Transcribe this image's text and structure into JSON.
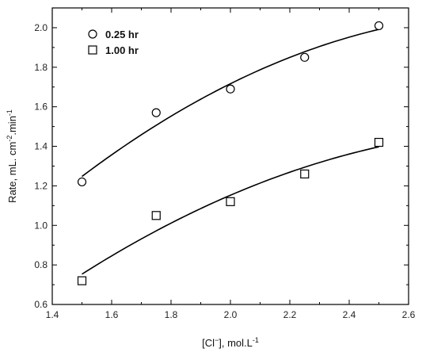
{
  "chart_data": {
    "type": "scatter",
    "title": "",
    "xlabel_parts": [
      "[Cl",
      "−",
      "], mol.L",
      "-1"
    ],
    "ylabel_parts": [
      "Rate, mL. cm",
      "-2",
      ".min",
      "-1"
    ],
    "xlim": [
      1.4,
      2.6
    ],
    "ylim": [
      0.6,
      2.1
    ],
    "xticks": [
      1.4,
      1.6,
      1.8,
      2.0,
      2.2,
      2.4,
      2.6
    ],
    "xtick_labels": [
      "1.4",
      "1.6",
      "1.8",
      "2.0",
      "2.2",
      "2.4",
      "2.6"
    ],
    "yticks": [
      0.6,
      0.8,
      1.0,
      1.2,
      1.4,
      1.6,
      1.8,
      2.0
    ],
    "ytick_labels": [
      "0.6",
      "0.8",
      "1.0",
      "1.2",
      "1.4",
      "1.6",
      "1.8",
      "2.0"
    ],
    "grid": false,
    "legend_position": "top-left",
    "series": [
      {
        "name": "0.25 hr",
        "marker": "circle",
        "x": [
          1.5,
          1.75,
          2.0,
          2.25,
          2.5
        ],
        "y": [
          1.22,
          1.57,
          1.69,
          1.85,
          2.01
        ],
        "fit": "quadratic"
      },
      {
        "name": "1.00 hr",
        "marker": "square",
        "x": [
          1.5,
          1.75,
          2.0,
          2.25,
          2.5
        ],
        "y": [
          0.72,
          1.05,
          1.12,
          1.26,
          1.42
        ],
        "fit": "quadratic"
      }
    ]
  }
}
